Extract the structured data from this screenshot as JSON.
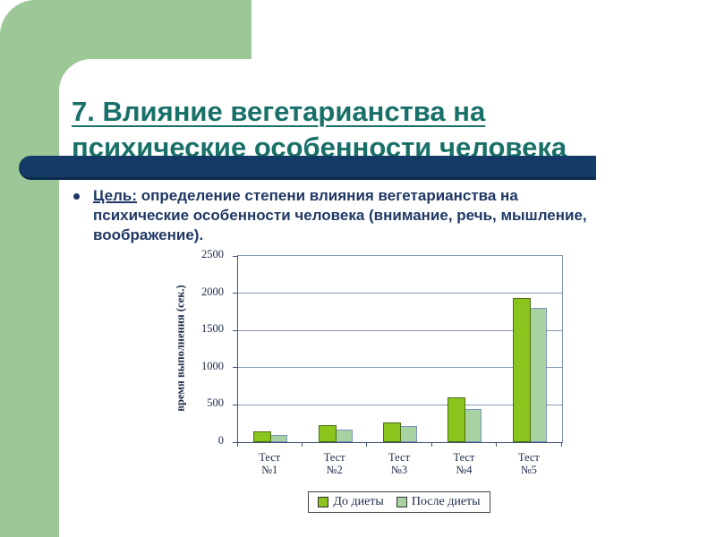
{
  "slide": {
    "title_line1": "7. Влияние вегетарианства на",
    "title_line2": "психические особенности человека",
    "bullet": {
      "label": "Цель:",
      "line1_rest": " определение степени влияния вегетарианства на",
      "line2": "психические особенности человека (внимание, речь, мышление,",
      "line3": "воображение)."
    }
  },
  "colors": {
    "accent_green_panel": "#9cc897",
    "accent_navy_bar": "#133b66",
    "title_teal": "#187069",
    "body_text_navy": "#1f3864",
    "series1_fill": "#8ac41c",
    "series1_border": "#4c7013",
    "series2_fill": "#a9d2a2",
    "series2_border": "#7c90c4",
    "gridline": "#8599b6",
    "axis": "#3d5374"
  },
  "chart_data": {
    "type": "bar",
    "title": "",
    "xlabel": "",
    "ylabel": "время выполнения (сек.)",
    "ylim": [
      0,
      2500
    ],
    "yticks": [
      0,
      500,
      1000,
      1500,
      2000,
      2500
    ],
    "grid": true,
    "legend_position": "bottom",
    "categories": [
      "Тест №1",
      "Тест №2",
      "Тест №3",
      "Тест №4",
      "Тест №5"
    ],
    "series": [
      {
        "name": "До диеты",
        "color": "#8ac41c",
        "border": "#4c7013",
        "values": [
          140,
          225,
          260,
          600,
          1930
        ]
      },
      {
        "name": "После диеты",
        "color": "#a9d2a2",
        "border": "#7c90c4",
        "values": [
          95,
          170,
          220,
          450,
          1800
        ]
      }
    ]
  }
}
